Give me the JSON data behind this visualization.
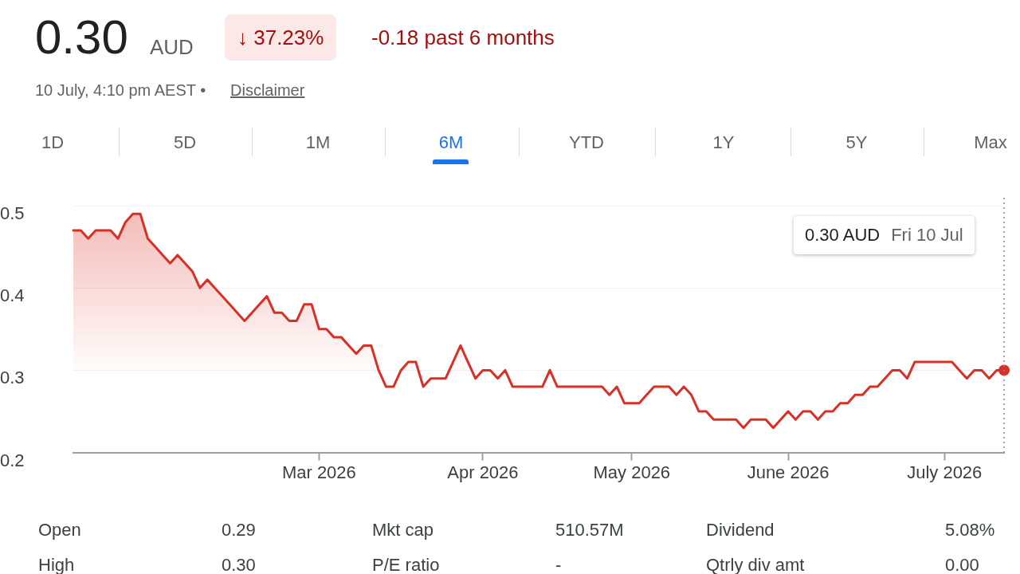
{
  "chart_data": {
    "type": "area",
    "title": "0.30",
    "annotations": [
      "AUD",
      "↓ 37.23%",
      "-0.18 past 6 months",
      "10 July, 4:10 pm AEST •",
      "Disclaimer",
      "1D",
      "5D",
      "1M",
      "6M",
      "YTD",
      "1Y",
      "5Y",
      "Max",
      "0.30 AUD",
      "Fri 10 Jul",
      "Open",
      "0.29",
      "Mkt cap",
      "510.57M",
      "Dividend",
      "5.08%",
      "High",
      "0.30",
      "P/E ratio",
      "-",
      "Qtrly div amt",
      "0.00"
    ],
    "categories": [
      null,
      null,
      null,
      null,
      null,
      null,
      null,
      null,
      null,
      null,
      null,
      null,
      null,
      null,
      null,
      null,
      null,
      null,
      null,
      null,
      null,
      null,
      null,
      null,
      null,
      null,
      null,
      null,
      null,
      null,
      null,
      null,
      null,
      "Mar 2026",
      null,
      null,
      null,
      null,
      null,
      null,
      null,
      null,
      null,
      null,
      null,
      null,
      null,
      null,
      null,
      null,
      null,
      null,
      null,
      null,
      null,
      "Apr 2026",
      null,
      null,
      null,
      null,
      null,
      null,
      null,
      null,
      null,
      null,
      null,
      null,
      null,
      null,
      null,
      null,
      null,
      null,
      null,
      "May 2026",
      null,
      null,
      null,
      null,
      null,
      null,
      null,
      null,
      null,
      null,
      null,
      null,
      null,
      null,
      null,
      null,
      null,
      null,
      null,
      null,
      "June 2026",
      null,
      null,
      null,
      null,
      null,
      null,
      null,
      null,
      null,
      null,
      null,
      null,
      null,
      null,
      null,
      null,
      null,
      null,
      null,
      null,
      "July 2026",
      null,
      null,
      null,
      null,
      null,
      null,
      null,
      null
    ],
    "series": [
      {
        "color": "#d93025",
        "values": [
          0.47,
          0.47,
          0.46,
          0.47,
          0.47,
          0.47,
          0.46,
          0.48,
          0.49,
          0.49,
          0.46,
          0.45,
          0.44,
          0.43,
          0.44,
          0.43,
          0.42,
          0.4,
          0.41,
          0.4,
          0.39,
          0.38,
          0.37,
          0.36,
          0.37,
          0.38,
          0.39,
          0.37,
          0.37,
          0.36,
          0.36,
          0.38,
          0.38,
          0.35,
          0.35,
          0.34,
          0.34,
          0.33,
          0.32,
          0.33,
          0.33,
          0.3,
          0.28,
          0.28,
          0.3,
          0.31,
          0.31,
          0.28,
          0.29,
          0.29,
          0.29,
          0.31,
          0.33,
          0.31,
          0.29,
          0.3,
          0.3,
          0.29,
          0.3,
          0.28,
          0.28,
          0.28,
          0.28,
          0.28,
          0.3,
          0.28,
          0.28,
          0.28,
          0.28,
          0.28,
          0.28,
          0.28,
          0.27,
          0.28,
          0.26,
          0.26,
          0.26,
          0.27,
          0.28,
          0.28,
          0.28,
          0.27,
          0.28,
          0.27,
          0.25,
          0.25,
          0.24,
          0.24,
          0.24,
          0.24,
          0.23,
          0.24,
          0.24,
          0.24,
          0.23,
          0.24,
          0.25,
          0.24,
          0.25,
          0.25,
          0.24,
          0.25,
          0.25,
          0.26,
          0.26,
          0.27,
          0.27,
          0.28,
          0.28,
          0.29,
          0.3,
          0.3,
          0.29,
          0.31,
          0.31,
          0.31,
          0.31,
          0.31,
          0.31,
          0.3,
          0.29,
          0.3,
          0.3,
          0.29,
          0.3,
          0.3
        ]
      }
    ],
    "ylim": [
      0.2,
      0.5
    ],
    "yticks": [
      0.2,
      0.3,
      0.4,
      0.5
    ],
    "grid": "y",
    "legend": false
  }
}
